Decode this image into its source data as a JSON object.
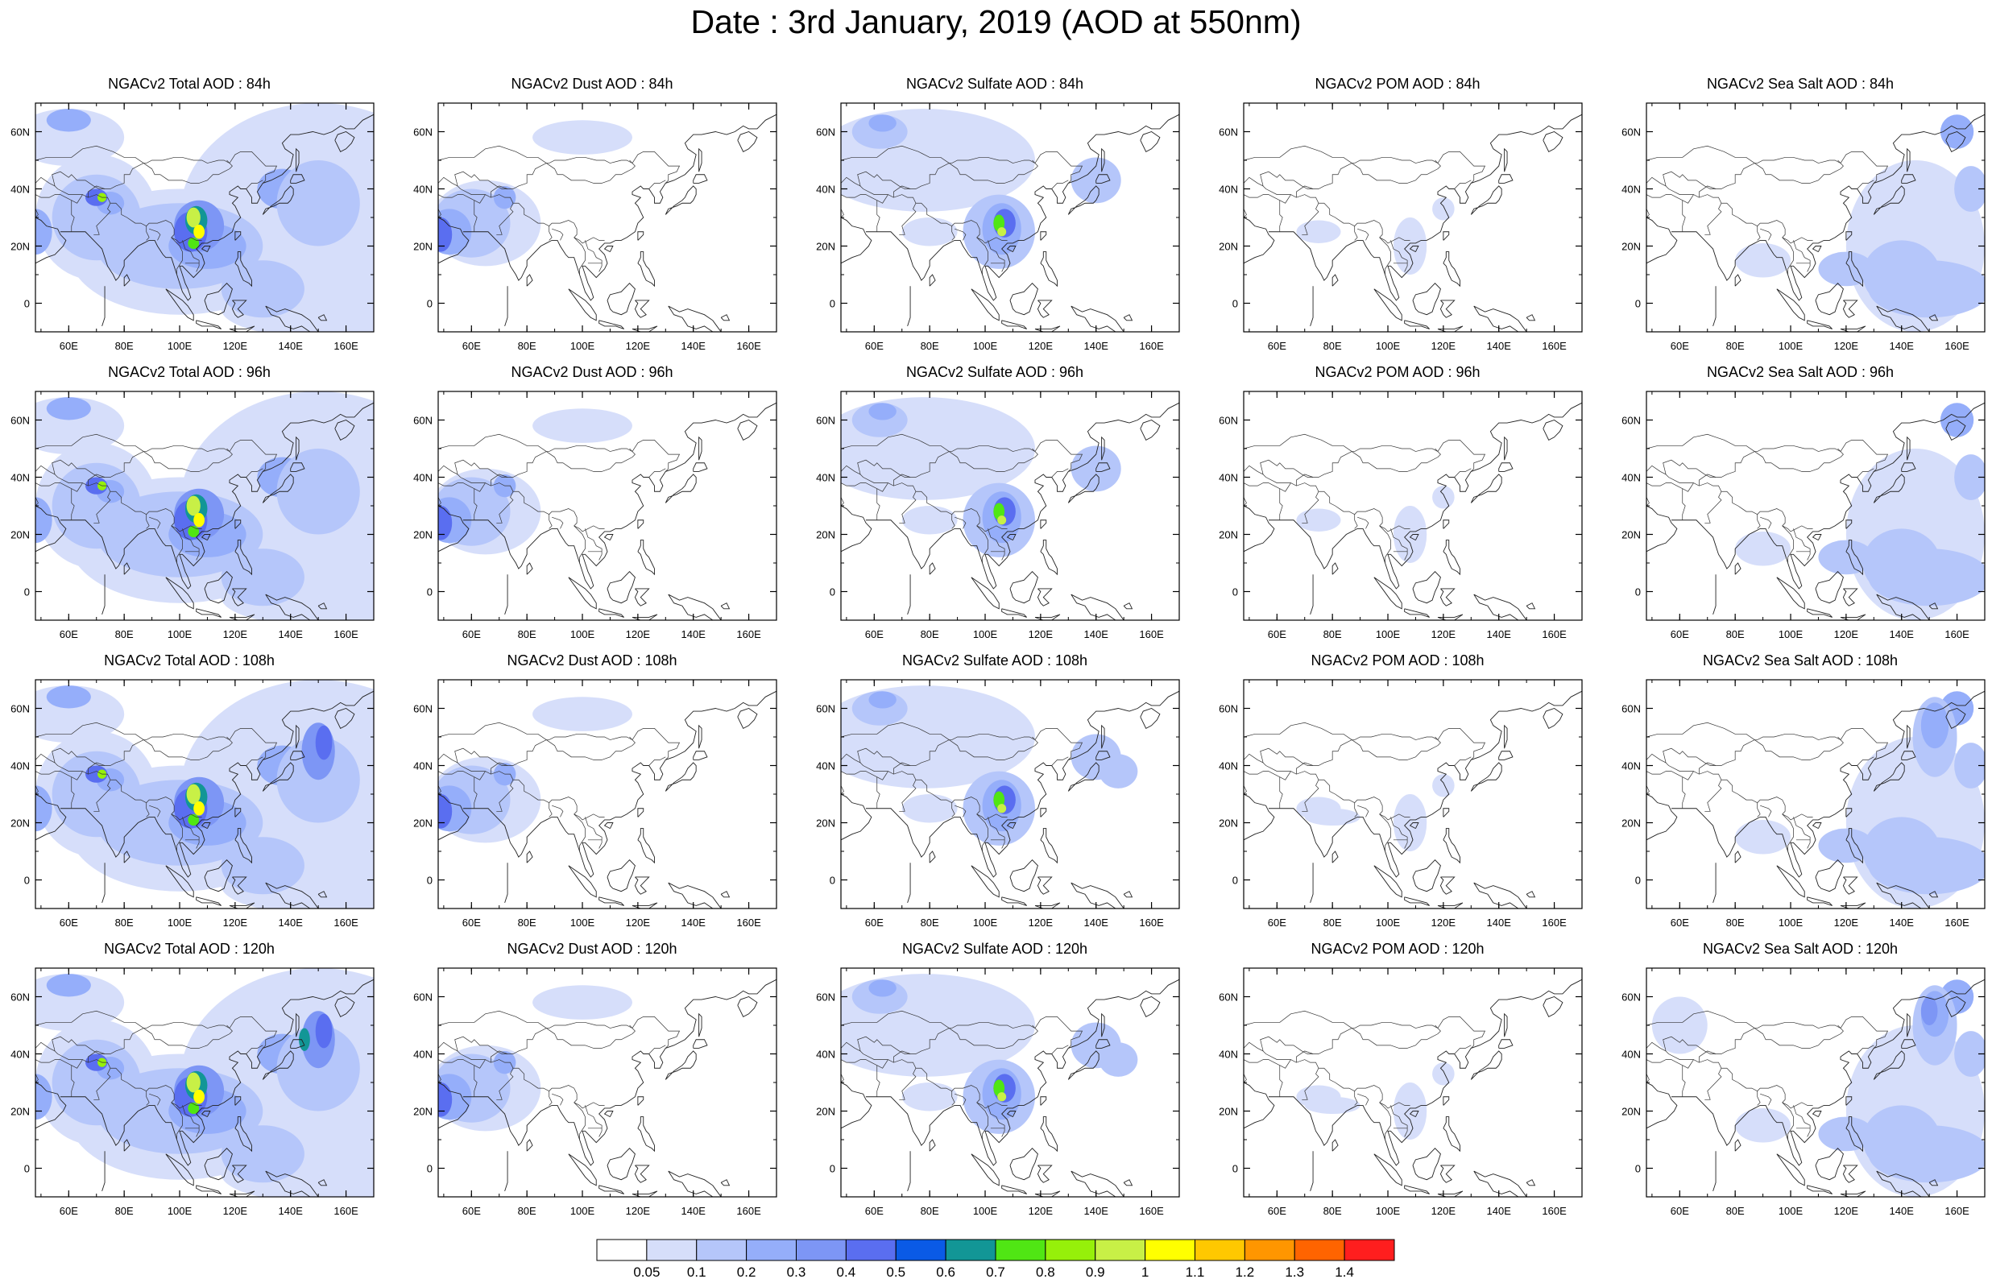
{
  "title": "Date : 3rd January, 2019 (AOD at 550nm)",
  "panels": [
    [
      {
        "title": "NGACv2 Total AOD : 84h",
        "species": "total"
      },
      {
        "title": "NGACv2 Dust AOD : 84h",
        "species": "dust"
      },
      {
        "title": "NGACv2 Sulfate AOD : 84h",
        "species": "sulfate"
      },
      {
        "title": "NGACv2 POM AOD : 84h",
        "species": "pom"
      },
      {
        "title": "NGACv2 Sea Salt AOD : 84h",
        "species": "seasalt"
      }
    ],
    [
      {
        "title": "NGACv2 Total AOD : 96h",
        "species": "total"
      },
      {
        "title": "NGACv2 Dust AOD : 96h",
        "species": "dust"
      },
      {
        "title": "NGACv2 Sulfate AOD : 96h",
        "species": "sulfate"
      },
      {
        "title": "NGACv2 POM AOD : 96h",
        "species": "pom"
      },
      {
        "title": "NGACv2 Sea Salt AOD : 96h",
        "species": "seasalt"
      }
    ],
    [
      {
        "title": "NGACv2 Total AOD : 108h",
        "species": "total"
      },
      {
        "title": "NGACv2 Dust AOD : 108h",
        "species": "dust"
      },
      {
        "title": "NGACv2 Sulfate AOD : 108h",
        "species": "sulfate"
      },
      {
        "title": "NGACv2 POM AOD : 108h",
        "species": "pom"
      },
      {
        "title": "NGACv2 Sea Salt AOD : 108h",
        "species": "seasalt"
      }
    ],
    [
      {
        "title": "NGACv2 Total AOD : 120h",
        "species": "total"
      },
      {
        "title": "NGACv2 Dust AOD : 120h",
        "species": "dust"
      },
      {
        "title": "NGACv2 Sulfate AOD : 120h",
        "species": "sulfate"
      },
      {
        "title": "NGACv2 POM AOD : 120h",
        "species": "pom"
      },
      {
        "title": "NGACv2 Sea Salt  AOD : 120h",
        "species": "seasalt"
      }
    ]
  ],
  "map": {
    "lon_range": [
      48,
      170
    ],
    "lat_range": [
      -10,
      70
    ],
    "lon_ticks": [
      "60E",
      "80E",
      "100E",
      "120E",
      "140E",
      "160E"
    ],
    "lon_tick_values": [
      60,
      80,
      100,
      120,
      140,
      160
    ],
    "lat_ticks": [
      "60N",
      "40N",
      "20N",
      "0"
    ],
    "lat_tick_values": [
      60,
      40,
      20,
      0
    ]
  },
  "colorbar": {
    "labels": [
      "0.05",
      "0.1",
      "0.2",
      "0.3",
      "0.4",
      "0.5",
      "0.6",
      "0.7",
      "0.8",
      "0.9",
      "1",
      "1.1",
      "1.2",
      "1.3",
      "1.4"
    ],
    "colors": [
      "#ffffff",
      "#d6defa",
      "#b5c6fa",
      "#95aefa",
      "#7d96f5",
      "#5a6ef0",
      "#0a5ae6",
      "#129696",
      "#50e614",
      "#96f00a",
      "#c8f046",
      "#ffff00",
      "#ffc800",
      "#ff9600",
      "#ff6400",
      "#ff1e1e"
    ]
  }
}
